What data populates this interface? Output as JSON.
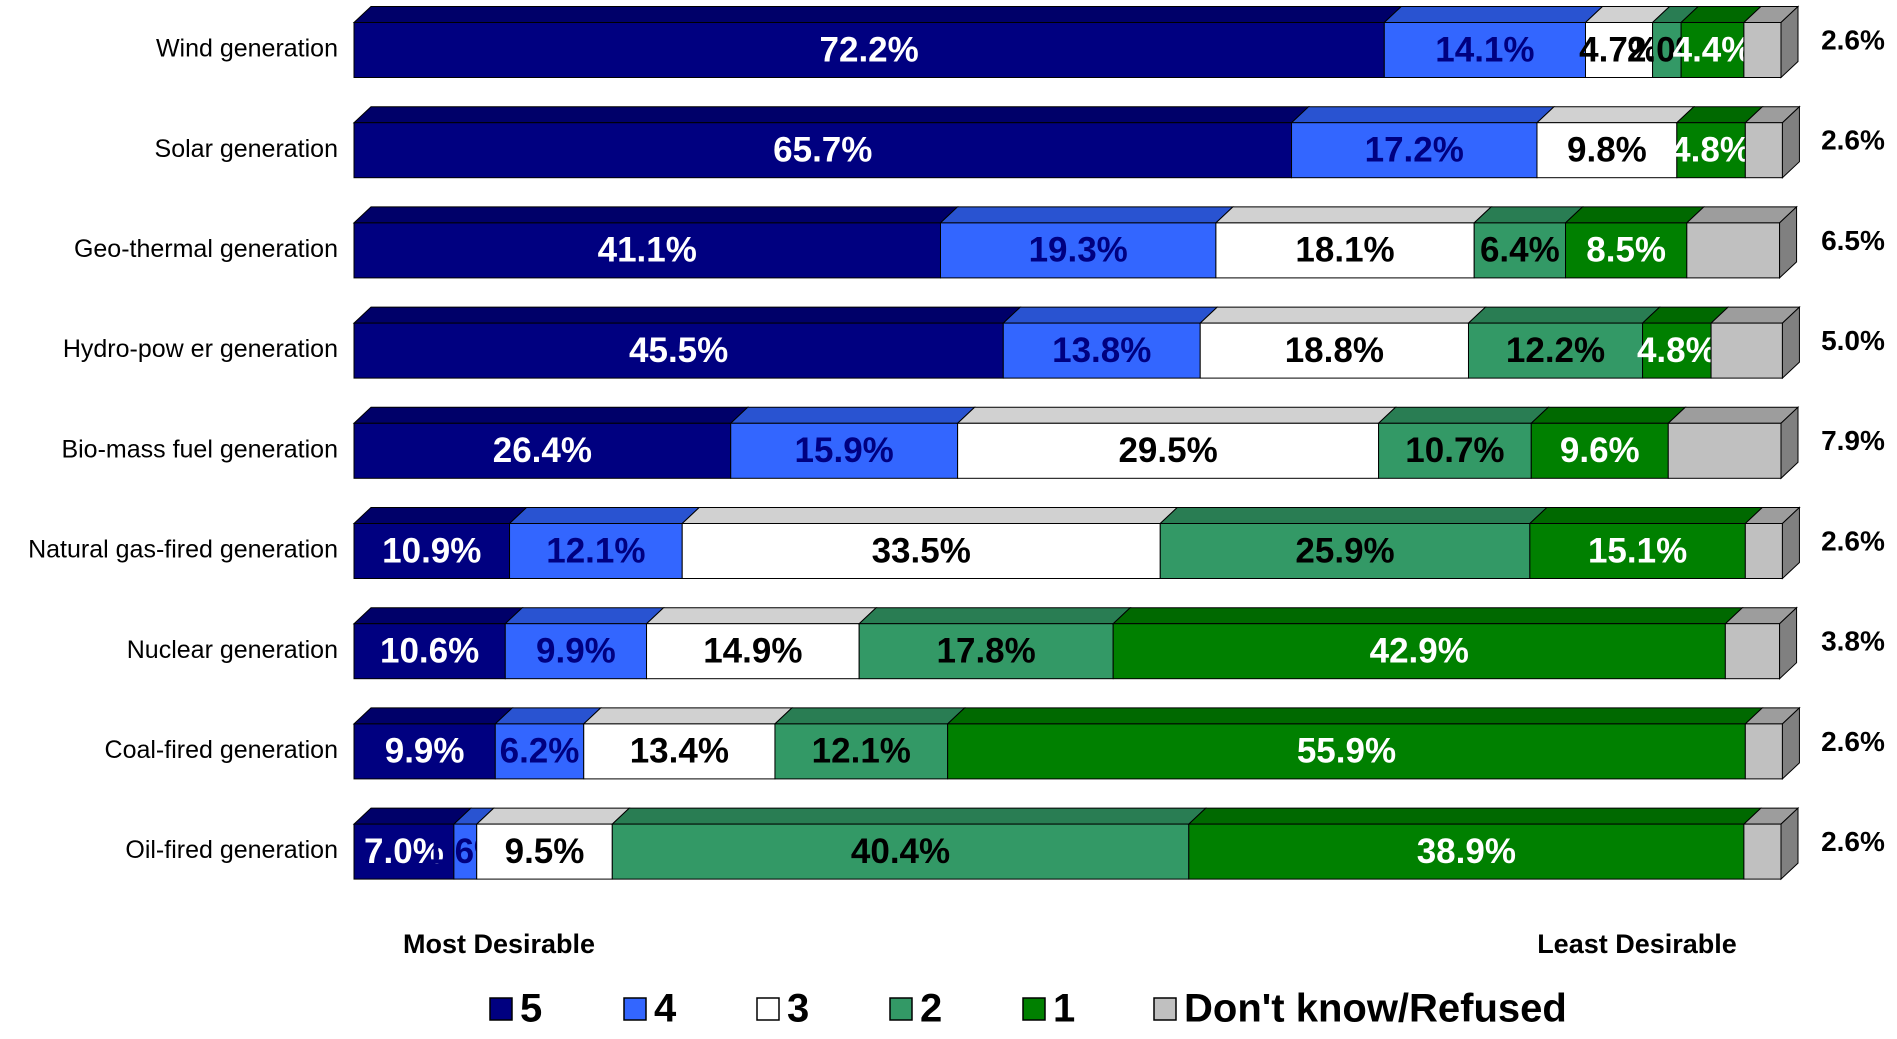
{
  "chart_data": {
    "type": "stacked_bar_3d",
    "categories": [
      "Wind generation",
      "Solar generation",
      "Geo-thermal generation",
      "Hydro-pow er generation",
      "Bio-mass fuel generation",
      "Natural gas-fired generation",
      "Nuclear generation",
      "Coal-fired generation",
      "Oil-fired generation"
    ],
    "xlim": [
      0,
      100
    ],
    "annotations": [
      "Most Desirable",
      "Least Desirable"
    ],
    "series": [
      {
        "name": "5",
        "color": "#000080",
        "values": [
          72.2,
          65.7,
          41.1,
          45.5,
          26.4,
          10.9,
          10.6,
          9.9,
          7.0
        ],
        "value_labels": [
          "72.2%",
          "65.7%",
          "41.1%",
          "45.5%",
          "26.4%",
          "10.9%",
          "10.6%",
          "9.9%",
          "7.0%"
        ]
      },
      {
        "name": "4",
        "color": "#3366ff",
        "values": [
          14.1,
          17.2,
          19.3,
          13.8,
          15.9,
          12.1,
          9.9,
          6.2,
          1.6
        ],
        "value_labels": [
          "14.1%",
          "17.2%",
          "19.3%",
          "13.8%",
          "15.9%",
          "12.1%",
          "9.9%",
          "6.2%",
          "1.6%"
        ]
      },
      {
        "name": "3",
        "color": "#ffffff",
        "values": [
          4.7,
          9.8,
          18.1,
          18.8,
          29.5,
          33.5,
          14.9,
          13.4,
          9.5
        ],
        "value_labels": [
          "4.7%",
          "9.8%",
          "18.1%",
          "18.8%",
          "29.5%",
          "33.5%",
          "14.9%",
          "13.4%",
          "9.5%"
        ]
      },
      {
        "name": "2",
        "color": "#339966",
        "values": [
          2.0,
          null,
          6.4,
          12.2,
          10.7,
          25.9,
          17.8,
          12.1,
          40.4
        ],
        "value_labels": [
          "2.0%",
          null,
          "6.4%",
          "12.2%",
          "10.7%",
          "25.9%",
          "17.8%",
          "12.1%",
          "40.4%"
        ]
      },
      {
        "name": "1",
        "color": "#008000",
        "values": [
          4.4,
          4.8,
          8.5,
          4.8,
          9.6,
          15.1,
          42.9,
          55.9,
          38.9
        ],
        "value_labels": [
          "4.4%",
          "4.8%",
          "8.5%",
          "4.8%",
          "9.6%",
          "15.1%",
          "42.9%",
          "55.9%",
          "38.9%"
        ]
      },
      {
        "name": "Don't know/Refused",
        "color": "#c0c0c0",
        "values": [
          2.6,
          2.6,
          6.5,
          5.0,
          7.9,
          2.6,
          3.8,
          2.6,
          2.6
        ],
        "value_labels": [
          "2.6%",
          "2.6%",
          "6.5%",
          "5.0%",
          "7.9%",
          "2.6%",
          "3.8%",
          "2.6%",
          "2.6%"
        ]
      }
    ]
  }
}
